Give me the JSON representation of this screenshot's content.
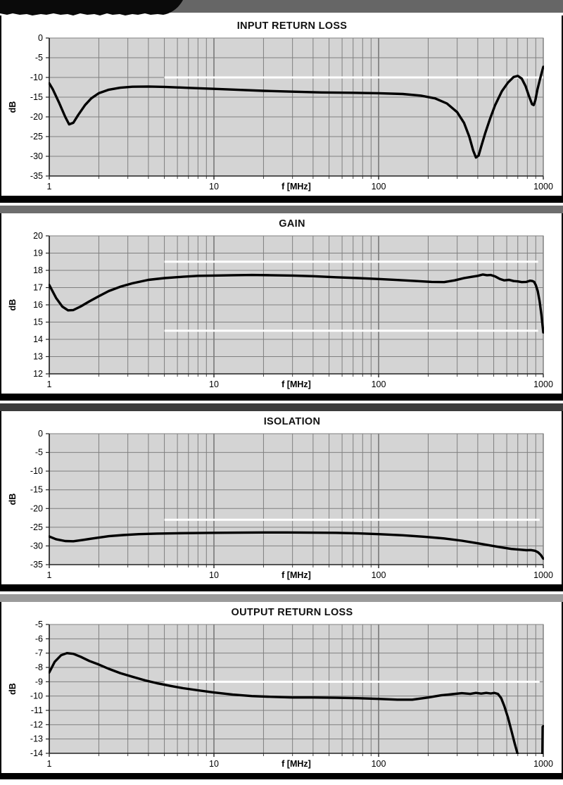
{
  "banner": {
    "name": "clipped-header-remnant"
  },
  "colors": {
    "plot_bg": "#d4d4d4",
    "grid": "#7f7f7f",
    "grid_major": "#6a6a6a",
    "curve": "#000000",
    "spec": "#ffffff",
    "banner_gray": "#666666",
    "divider_black": "#000000",
    "divider_grays": [
      "#6e6e6e",
      "#3c3c3c",
      "#9b9b9b"
    ]
  },
  "chart_data": [
    {
      "type": "line",
      "title": "INPUT RETURN LOSS",
      "xlabel": "f [MHz]",
      "ylabel": "dB",
      "x_scale": "log",
      "xlim": [
        1,
        1000
      ],
      "ylim": [
        -35,
        0
      ],
      "xticks": [
        1,
        10,
        100,
        1000
      ],
      "yticks": [
        0,
        -5,
        -10,
        -15,
        -20,
        -25,
        -30,
        -35
      ],
      "grid": true,
      "spec_lines": [
        {
          "y": -10,
          "x1": 5,
          "x2": 1000
        }
      ],
      "series": [
        {
          "points": [
            [
              1,
              -11.5
            ],
            [
              1.05,
              -13
            ],
            [
              1.15,
              -16.5
            ],
            [
              1.25,
              -20
            ],
            [
              1.32,
              -21.9
            ],
            [
              1.4,
              -21.5
            ],
            [
              1.5,
              -19.5
            ],
            [
              1.65,
              -17
            ],
            [
              1.8,
              -15.3
            ],
            [
              2,
              -14
            ],
            [
              2.3,
              -13.1
            ],
            [
              2.7,
              -12.6
            ],
            [
              3.2,
              -12.35
            ],
            [
              4,
              -12.3
            ],
            [
              5,
              -12.4
            ],
            [
              7,
              -12.65
            ],
            [
              10,
              -12.9
            ],
            [
              14,
              -13.15
            ],
            [
              20,
              -13.4
            ],
            [
              30,
              -13.6
            ],
            [
              45,
              -13.8
            ],
            [
              70,
              -13.9
            ],
            [
              100,
              -14
            ],
            [
              140,
              -14.2
            ],
            [
              180,
              -14.6
            ],
            [
              220,
              -15.3
            ],
            [
              260,
              -16.6
            ],
            [
              300,
              -18.8
            ],
            [
              330,
              -21.5
            ],
            [
              355,
              -25
            ],
            [
              375,
              -28.5
            ],
            [
              390,
              -30.3
            ],
            [
              405,
              -29.8
            ],
            [
              420,
              -27.5
            ],
            [
              445,
              -24
            ],
            [
              475,
              -20.5
            ],
            [
              510,
              -17
            ],
            [
              560,
              -13.5
            ],
            [
              610,
              -11.3
            ],
            [
              660,
              -9.9
            ],
            [
              700,
              -9.6
            ],
            [
              740,
              -10.3
            ],
            [
              780,
              -12.2
            ],
            [
              820,
              -14.8
            ],
            [
              855,
              -16.8
            ],
            [
              875,
              -17
            ],
            [
              895,
              -15.8
            ],
            [
              920,
              -13.2
            ],
            [
              950,
              -10.8
            ],
            [
              975,
              -9
            ],
            [
              1000,
              -7.3
            ]
          ]
        }
      ]
    },
    {
      "type": "line",
      "title": "GAIN",
      "xlabel": "f [MHz]",
      "ylabel": "dB",
      "x_scale": "log",
      "xlim": [
        1,
        1000
      ],
      "ylim": [
        12,
        20
      ],
      "xticks": [
        1,
        10,
        100,
        1000
      ],
      "yticks": [
        20,
        19,
        18,
        17,
        16,
        15,
        14,
        13,
        12
      ],
      "grid": true,
      "spec_lines": [
        {
          "y": 18.5,
          "x1": 5,
          "x2": 930
        },
        {
          "y": 14.5,
          "x1": 5,
          "x2": 930
        }
      ],
      "series": [
        {
          "points": [
            [
              1,
              17.15
            ],
            [
              1.1,
              16.4
            ],
            [
              1.2,
              15.9
            ],
            [
              1.3,
              15.68
            ],
            [
              1.4,
              15.7
            ],
            [
              1.55,
              15.9
            ],
            [
              1.75,
              16.2
            ],
            [
              2,
              16.5
            ],
            [
              2.3,
              16.8
            ],
            [
              2.7,
              17.05
            ],
            [
              3.2,
              17.25
            ],
            [
              4,
              17.45
            ],
            [
              5,
              17.55
            ],
            [
              6.5,
              17.63
            ],
            [
              8,
              17.68
            ],
            [
              10,
              17.7
            ],
            [
              13,
              17.72
            ],
            [
              17,
              17.73
            ],
            [
              22,
              17.72
            ],
            [
              30,
              17.7
            ],
            [
              40,
              17.66
            ],
            [
              55,
              17.6
            ],
            [
              75,
              17.55
            ],
            [
              100,
              17.5
            ],
            [
              130,
              17.44
            ],
            [
              170,
              17.38
            ],
            [
              210,
              17.33
            ],
            [
              250,
              17.32
            ],
            [
              290,
              17.42
            ],
            [
              330,
              17.55
            ],
            [
              370,
              17.63
            ],
            [
              400,
              17.68
            ],
            [
              430,
              17.76
            ],
            [
              455,
              17.72
            ],
            [
              480,
              17.73
            ],
            [
              510,
              17.65
            ],
            [
              545,
              17.5
            ],
            [
              580,
              17.42
            ],
            [
              620,
              17.45
            ],
            [
              660,
              17.38
            ],
            [
              700,
              17.36
            ],
            [
              740,
              17.32
            ],
            [
              790,
              17.33
            ],
            [
              830,
              17.4
            ],
            [
              860,
              17.38
            ],
            [
              880,
              17.33
            ],
            [
              900,
              17.15
            ],
            [
              925,
              16.8
            ],
            [
              950,
              16.2
            ],
            [
              975,
              15.4
            ],
            [
              1000,
              14.4
            ]
          ]
        }
      ]
    },
    {
      "type": "line",
      "title": "ISOLATION",
      "xlabel": "f [MHz]",
      "ylabel": "dB",
      "x_scale": "log",
      "xlim": [
        1,
        1000
      ],
      "ylim": [
        -35,
        0
      ],
      "xticks": [
        1,
        10,
        100,
        1000
      ],
      "yticks": [
        0,
        -5,
        -10,
        -15,
        -20,
        -25,
        -30,
        -35
      ],
      "grid": true,
      "spec_lines": [
        {
          "y": -23,
          "x1": 5,
          "x2": 950
        }
      ],
      "series": [
        {
          "points": [
            [
              1,
              -27.5
            ],
            [
              1.1,
              -28.2
            ],
            [
              1.25,
              -28.7
            ],
            [
              1.4,
              -28.75
            ],
            [
              1.6,
              -28.4
            ],
            [
              1.9,
              -27.9
            ],
            [
              2.3,
              -27.4
            ],
            [
              2.8,
              -27.1
            ],
            [
              3.5,
              -26.85
            ],
            [
              4.5,
              -26.7
            ],
            [
              6,
              -26.6
            ],
            [
              8,
              -26.55
            ],
            [
              10,
              -26.5
            ],
            [
              14,
              -26.45
            ],
            [
              20,
              -26.4
            ],
            [
              28,
              -26.4
            ],
            [
              40,
              -26.45
            ],
            [
              55,
              -26.5
            ],
            [
              75,
              -26.65
            ],
            [
              100,
              -26.85
            ],
            [
              140,
              -27.15
            ],
            [
              190,
              -27.55
            ],
            [
              250,
              -28
            ],
            [
              320,
              -28.6
            ],
            [
              400,
              -29.3
            ],
            [
              480,
              -29.9
            ],
            [
              560,
              -30.4
            ],
            [
              640,
              -30.8
            ],
            [
              720,
              -31
            ],
            [
              790,
              -31.15
            ],
            [
              840,
              -31.1
            ],
            [
              890,
              -31.3
            ],
            [
              930,
              -31.7
            ],
            [
              965,
              -32.4
            ],
            [
              1000,
              -33.4
            ]
          ]
        }
      ]
    },
    {
      "type": "line",
      "title": "OUTPUT RETURN LOSS",
      "xlabel": "f [MHz]",
      "ylabel": "dB",
      "x_scale": "log",
      "xlim": [
        1,
        1000
      ],
      "ylim": [
        -14,
        -5
      ],
      "xticks": [
        1,
        10,
        100,
        1000
      ],
      "yticks": [
        -5,
        -6,
        -7,
        -8,
        -9,
        -10,
        -11,
        -12,
        -13,
        -14
      ],
      "grid": true,
      "spec_lines": [
        {
          "y": -9,
          "x1": 5,
          "x2": 950
        }
      ],
      "series": [
        {
          "points": [
            [
              1,
              -8.35
            ],
            [
              1.08,
              -7.6
            ],
            [
              1.18,
              -7.15
            ],
            [
              1.28,
              -7.0
            ],
            [
              1.4,
              -7.05
            ],
            [
              1.55,
              -7.25
            ],
            [
              1.75,
              -7.55
            ],
            [
              2,
              -7.8
            ],
            [
              2.3,
              -8.1
            ],
            [
              2.7,
              -8.4
            ],
            [
              3.2,
              -8.65
            ],
            [
              3.8,
              -8.9
            ],
            [
              4.5,
              -9.1
            ],
            [
              5.5,
              -9.3
            ],
            [
              6.5,
              -9.45
            ],
            [
              8,
              -9.6
            ],
            [
              10,
              -9.75
            ],
            [
              13,
              -9.9
            ],
            [
              17,
              -10
            ],
            [
              22,
              -10.05
            ],
            [
              30,
              -10.1
            ],
            [
              40,
              -10.1
            ],
            [
              55,
              -10.12
            ],
            [
              75,
              -10.15
            ],
            [
              100,
              -10.2
            ],
            [
              130,
              -10.25
            ],
            [
              160,
              -10.25
            ],
            [
              200,
              -10.1
            ],
            [
              240,
              -9.95
            ],
            [
              280,
              -9.87
            ],
            [
              320,
              -9.8
            ],
            [
              360,
              -9.85
            ],
            [
              390,
              -9.78
            ],
            [
              420,
              -9.83
            ],
            [
              450,
              -9.78
            ],
            [
              480,
              -9.82
            ],
            [
              505,
              -9.78
            ],
            [
              530,
              -9.85
            ],
            [
              555,
              -10.15
            ],
            [
              580,
              -10.7
            ],
            [
              610,
              -11.5
            ],
            [
              640,
              -12.4
            ],
            [
              670,
              -13.3
            ],
            [
              700,
              -14.1
            ],
            [
              715,
              -14.6
            ]
          ]
        },
        {
          "points": [
            [
              986,
              -14.6
            ],
            [
              991,
              -12.15
            ],
            [
              1000,
              -12.1
            ]
          ]
        }
      ]
    }
  ]
}
